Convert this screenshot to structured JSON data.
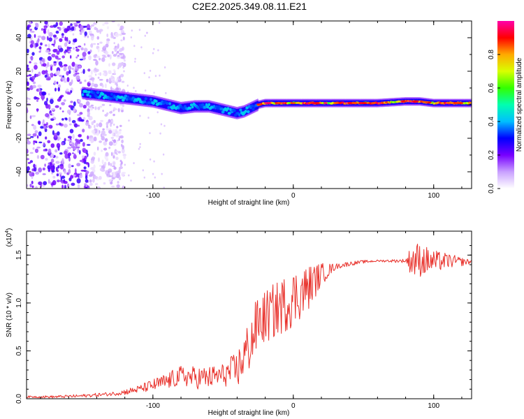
{
  "title": "C2E2.2025.349.08.11.E21",
  "chart_data": [
    {
      "type": "heatmap",
      "name": "spectrogram",
      "xlabel": "Height of straight line (km)",
      "ylabel": "Frequency (Hz)",
      "xlim": [
        -190,
        127
      ],
      "ylim": [
        -50,
        50
      ],
      "xticks": [
        -100,
        0,
        100
      ],
      "xticklabels": [
        "-100",
        "0",
        "100"
      ],
      "yticks": [
        -40,
        -20,
        0,
        20,
        40
      ],
      "yticklabels": [
        "-40",
        "-20",
        "0",
        "20",
        "40"
      ],
      "colorbar": {
        "label": "Normalized spectral amplitude",
        "range": [
          0.0,
          1.0
        ],
        "ticks": [
          0.0,
          0.2,
          0.4,
          0.6,
          0.8
        ],
        "ticklabels": [
          "0.0",
          "0.2",
          "0.4",
          "0.6",
          "0.8"
        ],
        "colors": [
          "#ffffff",
          "#c9a0ff",
          "#7700ff",
          "#0000ff",
          "#00bfff",
          "#00ffb0",
          "#33ff00",
          "#d8ff00",
          "#ffaa00",
          "#ff0000",
          "#ff00aa"
        ]
      },
      "ridge_centerline": {
        "x": [
          -150,
          -140,
          -130,
          -120,
          -110,
          -100,
          -90,
          -80,
          -70,
          -60,
          -50,
          -40,
          -35,
          -30,
          -25,
          -20,
          -10,
          0,
          10,
          20,
          40,
          60,
          80,
          90,
          100,
          110,
          127
        ],
        "y": [
          7,
          6,
          5,
          4,
          3,
          2,
          0,
          -2,
          -1,
          -1,
          -3,
          -5,
          -4,
          -2,
          0,
          1,
          1,
          1,
          1,
          1,
          1,
          1,
          2,
          2,
          1,
          1,
          1
        ]
      },
      "noise_region_x": [
        -190,
        -130
      ]
    },
    {
      "type": "line",
      "name": "snr",
      "xlabel": "Height of straight line (km)",
      "ylabel": "SNR (10 * v/v)",
      "y_multiplier": "(x10",
      "y_multiplier_exp": "4",
      "xlim": [
        -190,
        127
      ],
      "ylim": [
        0.0,
        1.75
      ],
      "xticks": [
        -100,
        0,
        100
      ],
      "xticklabels": [
        "-100",
        "0",
        "100"
      ],
      "yticks": [
        0.0,
        0.5,
        1.0,
        1.5
      ],
      "yticklabels": [
        "0.0",
        "0.5",
        "1.0",
        "1.5"
      ],
      "color": "#e8302a",
      "series": [
        {
          "name": "SNR",
          "x": [
            -190,
            -170,
            -150,
            -130,
            -120,
            -110,
            -100,
            -90,
            -80,
            -70,
            -60,
            -50,
            -40,
            -35,
            -30,
            -25,
            -20,
            -10,
            0,
            10,
            20,
            30,
            40,
            50,
            60,
            70,
            80,
            85,
            90,
            95,
            100,
            110,
            120,
            127
          ],
          "y": [
            0.02,
            0.02,
            0.03,
            0.05,
            0.07,
            0.1,
            0.14,
            0.18,
            0.24,
            0.22,
            0.22,
            0.25,
            0.3,
            0.45,
            0.6,
            0.8,
            0.85,
            0.95,
            1.05,
            1.15,
            1.3,
            1.38,
            1.41,
            1.43,
            1.44,
            1.44,
            1.44,
            1.45,
            1.45,
            1.44,
            1.43,
            1.44,
            1.43,
            1.43
          ]
        }
      ],
      "noise_amplitude": {
        "x": [
          -190,
          -130,
          -110,
          -90,
          -70,
          -50,
          -40,
          -30,
          -20,
          -10,
          0,
          10,
          20,
          30,
          60,
          80,
          85,
          90,
          100,
          110,
          127
        ],
        "y": [
          0.01,
          0.02,
          0.04,
          0.09,
          0.12,
          0.12,
          0.2,
          0.3,
          0.28,
          0.3,
          0.3,
          0.25,
          0.12,
          0.03,
          0.01,
          0.02,
          0.2,
          0.18,
          0.12,
          0.08,
          0.02
        ]
      }
    }
  ]
}
